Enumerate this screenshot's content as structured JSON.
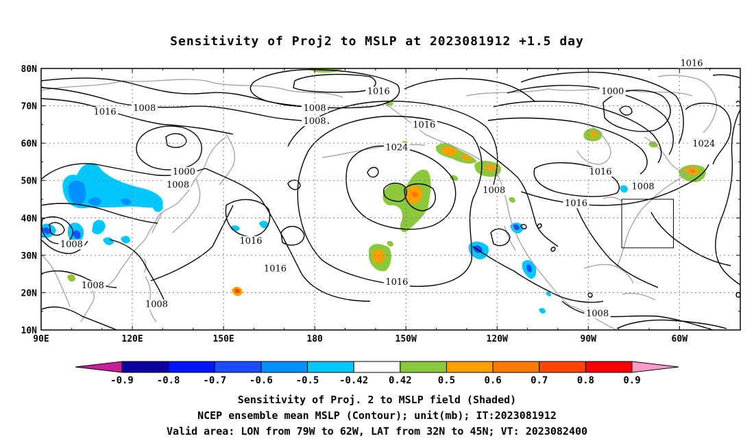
{
  "title": "Sensitivity of Proj2 to MSLP at 2023081912 +1.5 day",
  "lat_labels": [
    "80N",
    "70N",
    "60N",
    "50N",
    "40N",
    "30N",
    "20N",
    "10N"
  ],
  "lon_labels": [
    "90E",
    "120E",
    "150E",
    "180",
    "150W",
    "120W",
    "90W",
    "60W"
  ],
  "contour_labels": [
    {
      "text": "1016",
      "lon": 111,
      "lat": 68.0
    },
    {
      "text": "1008",
      "lon": 124,
      "lat": 69.0
    },
    {
      "text": "1008",
      "lon": 180,
      "lat": 69.0
    },
    {
      "text": "1008",
      "lon": 180,
      "lat": 65.5
    },
    {
      "text": "1016",
      "lon": -159,
      "lat": 73.5
    },
    {
      "text": "1016",
      "lon": -144,
      "lat": 64.5
    },
    {
      "text": "1000",
      "lon": 137,
      "lat": 52.0
    },
    {
      "text": "1008",
      "lon": 135,
      "lat": 48.5
    },
    {
      "text": "1024",
      "lon": -153,
      "lat": 58.5
    },
    {
      "text": "1008",
      "lon": -121,
      "lat": 47.0
    },
    {
      "text": "1000",
      "lon": -82,
      "lat": 73.5
    },
    {
      "text": "1016",
      "lon": -86,
      "lat": 52.0
    },
    {
      "text": "1008",
      "lon": -72,
      "lat": 48.0
    },
    {
      "text": "1016",
      "lon": -94,
      "lat": 43.5
    },
    {
      "text": "1024",
      "lon": -52,
      "lat": 59.5
    },
    {
      "text": "1016",
      "lon": -56,
      "lat": 81.0
    },
    {
      "text": "1008",
      "lon": 100,
      "lat": 32.5
    },
    {
      "text": "1016",
      "lon": 159,
      "lat": 33.5
    },
    {
      "text": "1016",
      "lon": 167,
      "lat": 26.0
    },
    {
      "text": "1016",
      "lon": -153,
      "lat": 22.5
    },
    {
      "text": "1008",
      "lon": 107,
      "lat": 21.5
    },
    {
      "text": "1008",
      "lon": 128,
      "lat": 16.5
    },
    {
      "text": "1008",
      "lon": -87,
      "lat": 14.0
    }
  ],
  "valid_box": {
    "lon_min": -79,
    "lon_max": -62,
    "lat_min": 32,
    "lat_max": 45
  },
  "colorbar": {
    "labels": [
      "-0.9",
      "-0.8",
      "-0.7",
      "-0.6",
      "-0.5",
      "-0.42",
      "0.42",
      "0.5",
      "0.6",
      "0.7",
      "0.8",
      "0.9"
    ],
    "colors": [
      "#0a00a0",
      "#0014ff",
      "#1e4cff",
      "#0090ff",
      "#00c8ff",
      "#ffffff",
      "#8cc83c",
      "#ffa000",
      "#ff7800",
      "#ff4600",
      "#ff0000"
    ],
    "end_low_color": "#c81e9b",
    "end_high_color": "#ff9bc8"
  },
  "captions": [
    "Sensitivity of Proj. 2 to MSLP field (Shaded)",
    "NCEP ensemble mean MSLP (Contour); unit(mb); IT:2023081912",
    "Valid area: LON from 79W to 62W, LAT from 32N to 45N; VT: 2023082400"
  ]
}
